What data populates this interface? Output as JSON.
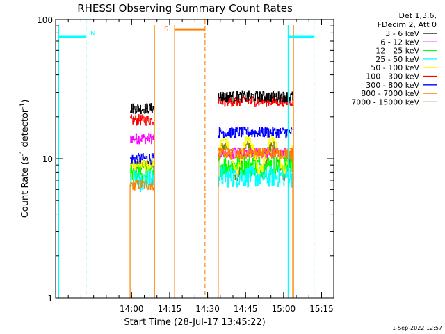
{
  "chart_data": {
    "type": "line",
    "title": "RHESSI Observing Summary Count Rates",
    "xlabel": "Start Time (28-Jul-17 13:45:22)",
    "ylabel_main": "Count Rate (s",
    "ylabel_sup": "-1",
    "ylabel_mid": " detector",
    "ylabel_sup2": "-1",
    "ylabel_end": ")",
    "yscale": "log",
    "ylim": [
      1,
      100
    ],
    "xlim_minutes": [
      13.5,
      15.33
    ],
    "x_unit": "hours of day (decimal)",
    "x_ticks": [
      {
        "label": "14:00",
        "value": 14.0
      },
      {
        "label": "14:15",
        "value": 14.25
      },
      {
        "label": "14:30",
        "value": 14.5
      },
      {
        "label": "14:45",
        "value": 14.75
      },
      {
        "label": "15:00",
        "value": 15.0
      },
      {
        "label": "15:15",
        "value": 15.25
      }
    ],
    "y_ticks": [
      {
        "label": "1",
        "value": 1
      },
      {
        "label": "10",
        "value": 10
      },
      {
        "label": "100",
        "value": 100
      }
    ],
    "legend": {
      "placement": "right",
      "header": [
        "Det 1,3,6,",
        "FDecim 2, Att 0"
      ],
      "entries": [
        {
          "name": "3 - 6 keV",
          "color": "#000000"
        },
        {
          "name": "6 - 12 keV",
          "color": "#ff00ff"
        },
        {
          "name": "12 - 25 keV",
          "color": "#00ff00"
        },
        {
          "name": "25 - 50 keV",
          "color": "#00ffff"
        },
        {
          "name": "50 - 100 keV",
          "color": "#ffff00"
        },
        {
          "name": "100 - 300 keV",
          "color": "#ff0000"
        },
        {
          "name": "300 - 800 keV",
          "color": "#0000ff"
        },
        {
          "name": "800 - 7000 keV",
          "color": "#ff8000"
        },
        {
          "name": "7000 - 15000 keV",
          "color": "#808000"
        }
      ]
    },
    "segments": [
      {
        "start": 13.99,
        "end": 14.15,
        "levels": [
          23,
          14,
          8,
          7,
          9,
          19,
          10,
          6.5,
          9
        ]
      },
      {
        "start": 14.57,
        "end": 15.06,
        "levels": [
          28,
          11,
          9,
          7.5,
          11,
          26,
          15.5,
          11,
          10
        ]
      }
    ],
    "events": [
      {
        "label": "N",
        "color": "#00ffff",
        "bar_start": 13.52,
        "bar_end": 13.7,
        "bar_level": 75,
        "line": 13.7
      },
      {
        "label": "S",
        "color": "#ff8000",
        "bar_start": 14.283,
        "bar_end": 14.483,
        "bar_level": 85,
        "line": 14.483
      },
      {
        "label": "",
        "color": "#00ffff",
        "bar_start": 15.03,
        "bar_end": 15.2,
        "bar_level": 75,
        "line": 15.2
      }
    ],
    "solid_boundaries": [
      {
        "x": 13.52,
        "color": "#00ffff"
      },
      {
        "x": 14.15,
        "color": "#ff8000"
      },
      {
        "x": 14.283,
        "color": "#ff8000"
      },
      {
        "x": 15.03,
        "color": "#00ffff"
      },
      {
        "x": 15.065,
        "color": "#ff8000"
      }
    ],
    "timestamp": "1-Sep-2022 12:57"
  }
}
